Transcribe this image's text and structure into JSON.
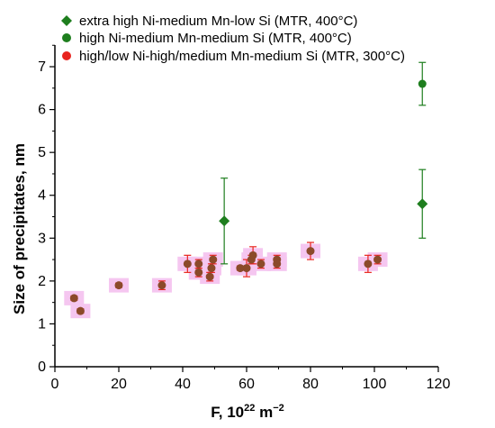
{
  "chart_data": {
    "type": "scatter",
    "xlabel_main": "F, 10",
    "xlabel_exp1": "22",
    "xlabel_mid": " m",
    "xlabel_exp2": "−2",
    "ylabel": "Size of precipitates, nm",
    "xlim": [
      0,
      120
    ],
    "ylim": [
      0,
      7.4
    ],
    "x_ticks": [
      "0",
      "20",
      "40",
      "60",
      "80",
      "100",
      "120"
    ],
    "y_ticks": [
      "0",
      "1",
      "2",
      "3",
      "4",
      "5",
      "6",
      "7"
    ],
    "legend_position": "top",
    "series": [
      {
        "name": "extra high Ni-medium Mn-low Si (MTR, 400°C)",
        "marker": "diamond",
        "color": "#1e7e1e",
        "points": [
          {
            "x": 53,
            "y": 3.4,
            "err": 1.0
          },
          {
            "x": 115,
            "y": 3.8,
            "err": 0.8
          }
        ]
      },
      {
        "name": "high Ni-medium Mn-medium Si (MTR, 400°C)",
        "marker": "circle",
        "color": "#1e7e1e",
        "points": [
          {
            "x": 115,
            "y": 6.6,
            "err": 0.5
          }
        ]
      },
      {
        "name": "high/low Ni-high/medium Mn-medium Si (MTR, 300°C)",
        "marker": "circle",
        "color": "#e8231e",
        "points": [
          {
            "x": 6,
            "y": 1.6,
            "err": 0.05
          },
          {
            "x": 8,
            "y": 1.3,
            "err": 0.05
          },
          {
            "x": 20,
            "y": 1.9,
            "err": 0.05
          },
          {
            "x": 33.5,
            "y": 1.9,
            "err": 0.1
          },
          {
            "x": 41.5,
            "y": 2.4,
            "err": 0.2
          },
          {
            "x": 45,
            "y": 2.2,
            "err": 0.1
          },
          {
            "x": 45,
            "y": 2.4,
            "err": 0.1
          },
          {
            "x": 48.5,
            "y": 2.1,
            "err": 0.1
          },
          {
            "x": 49,
            "y": 2.3,
            "err": 0.1
          },
          {
            "x": 49.5,
            "y": 2.5,
            "err": 0.1
          },
          {
            "x": 58,
            "y": 2.3,
            "err": 0.05
          },
          {
            "x": 60,
            "y": 2.3,
            "err": 0.2
          },
          {
            "x": 61.5,
            "y": 2.5,
            "err": 0.1
          },
          {
            "x": 62,
            "y": 2.6,
            "err": 0.2
          },
          {
            "x": 64.5,
            "y": 2.4,
            "err": 0.1
          },
          {
            "x": 69.5,
            "y": 2.4,
            "err": 0.1
          },
          {
            "x": 69.5,
            "y": 2.5,
            "err": 0.1
          },
          {
            "x": 80,
            "y": 2.7,
            "err": 0.2
          },
          {
            "x": 98,
            "y": 2.4,
            "err": 0.2
          },
          {
            "x": 101,
            "y": 2.5,
            "err": 0.1
          }
        ]
      }
    ]
  },
  "colors": {
    "highlight": "#f5c6f0",
    "overlap_fill": "#8b4a2a"
  }
}
